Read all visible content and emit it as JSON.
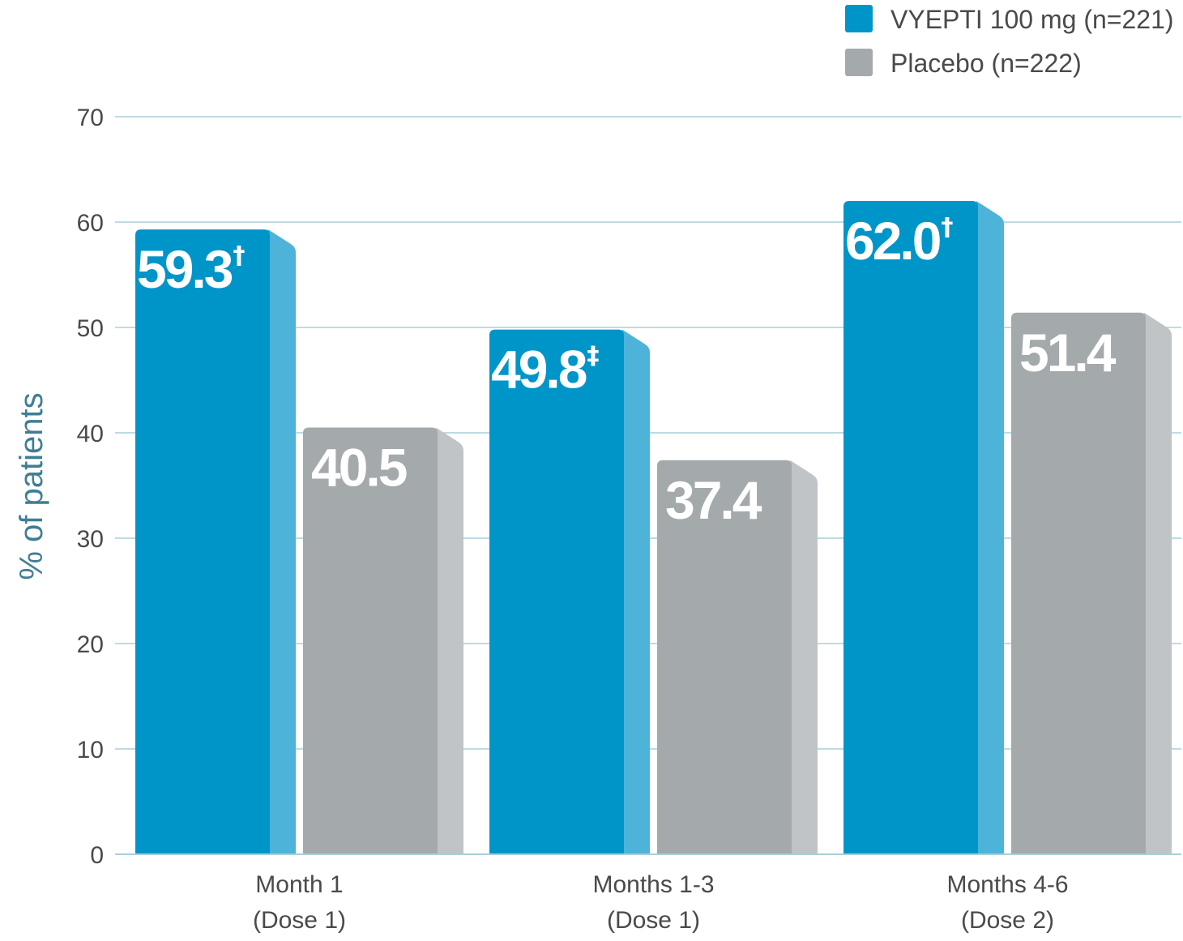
{
  "chart_data": {
    "type": "bar",
    "categories": [
      [
        "Month 1",
        "(Dose 1)"
      ],
      [
        "Months 1-3",
        "(Dose 1)"
      ],
      [
        "Months 4-6",
        "(Dose 2)"
      ]
    ],
    "series": [
      {
        "name": "VYEPTI 100 mg (n=221)",
        "values": [
          59.3,
          49.8,
          62.0
        ],
        "labels": [
          "59.3",
          "49.8",
          "62.0"
        ],
        "marks": [
          "†",
          "‡",
          "†"
        ],
        "color": "#0095c8",
        "side_color": "#4db3d9"
      },
      {
        "name": "Placebo (n=222)",
        "values": [
          40.5,
          37.4,
          51.4
        ],
        "labels": [
          "40.5",
          "37.4",
          "51.4"
        ],
        "marks": [
          "",
          "",
          ""
        ],
        "color": "#a4a9ac",
        "side_color": "#c0c4c7"
      }
    ],
    "ylabel": "% of patients",
    "xlabel": "",
    "ylim": [
      0,
      70
    ],
    "yticks": [
      0,
      10,
      20,
      30,
      40,
      50,
      60,
      70
    ],
    "grid": true,
    "grid_color": "#a9cfd8",
    "legend_position": "top-right"
  }
}
